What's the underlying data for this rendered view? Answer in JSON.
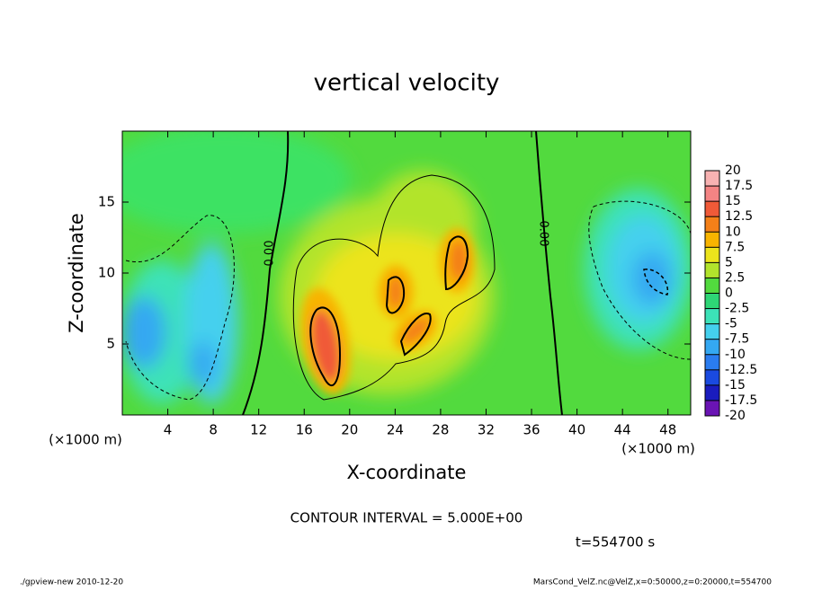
{
  "chart_data": {
    "type": "contour",
    "title": "vertical velocity",
    "x_label": "X-coordinate",
    "y_label": "Z-coordinate",
    "x_unit": "(×1000 m)",
    "xlim": [
      0,
      50
    ],
    "xticks": [
      4,
      8,
      12,
      16,
      20,
      24,
      28,
      32,
      36,
      40,
      44,
      48
    ],
    "ylim": [
      0,
      20
    ],
    "yticks": [
      5,
      10,
      15
    ],
    "colorbar": {
      "levels": [
        -20,
        -17.5,
        -15,
        -12.5,
        -10,
        -7.5,
        -5,
        -2.5,
        0,
        2.5,
        5,
        7.5,
        10,
        12.5,
        15,
        17.5,
        20
      ],
      "colors": [
        "#6a14b4",
        "#1a1cbe",
        "#1a4ae0",
        "#2a7cf0",
        "#34a8f2",
        "#44d0ee",
        "#3ce2b8",
        "#2ed676",
        "#52da3e",
        "#b2e42c",
        "#ece41c",
        "#f8b400",
        "#f48018",
        "#f05a38",
        "#f48484",
        "#f8b2b2"
      ]
    },
    "contour_labels": [
      "0.00",
      "0.00"
    ],
    "contour_interval_label": "CONTOUR INTERVAL = 5.000E+00",
    "time_label": "t=554700 s",
    "footer_left": "./gpview-new  2010-12-20",
    "footer_right": "MarsCond_VelZ.nc@VelZ,x=0:50000,z=0:20000,t=554700"
  }
}
